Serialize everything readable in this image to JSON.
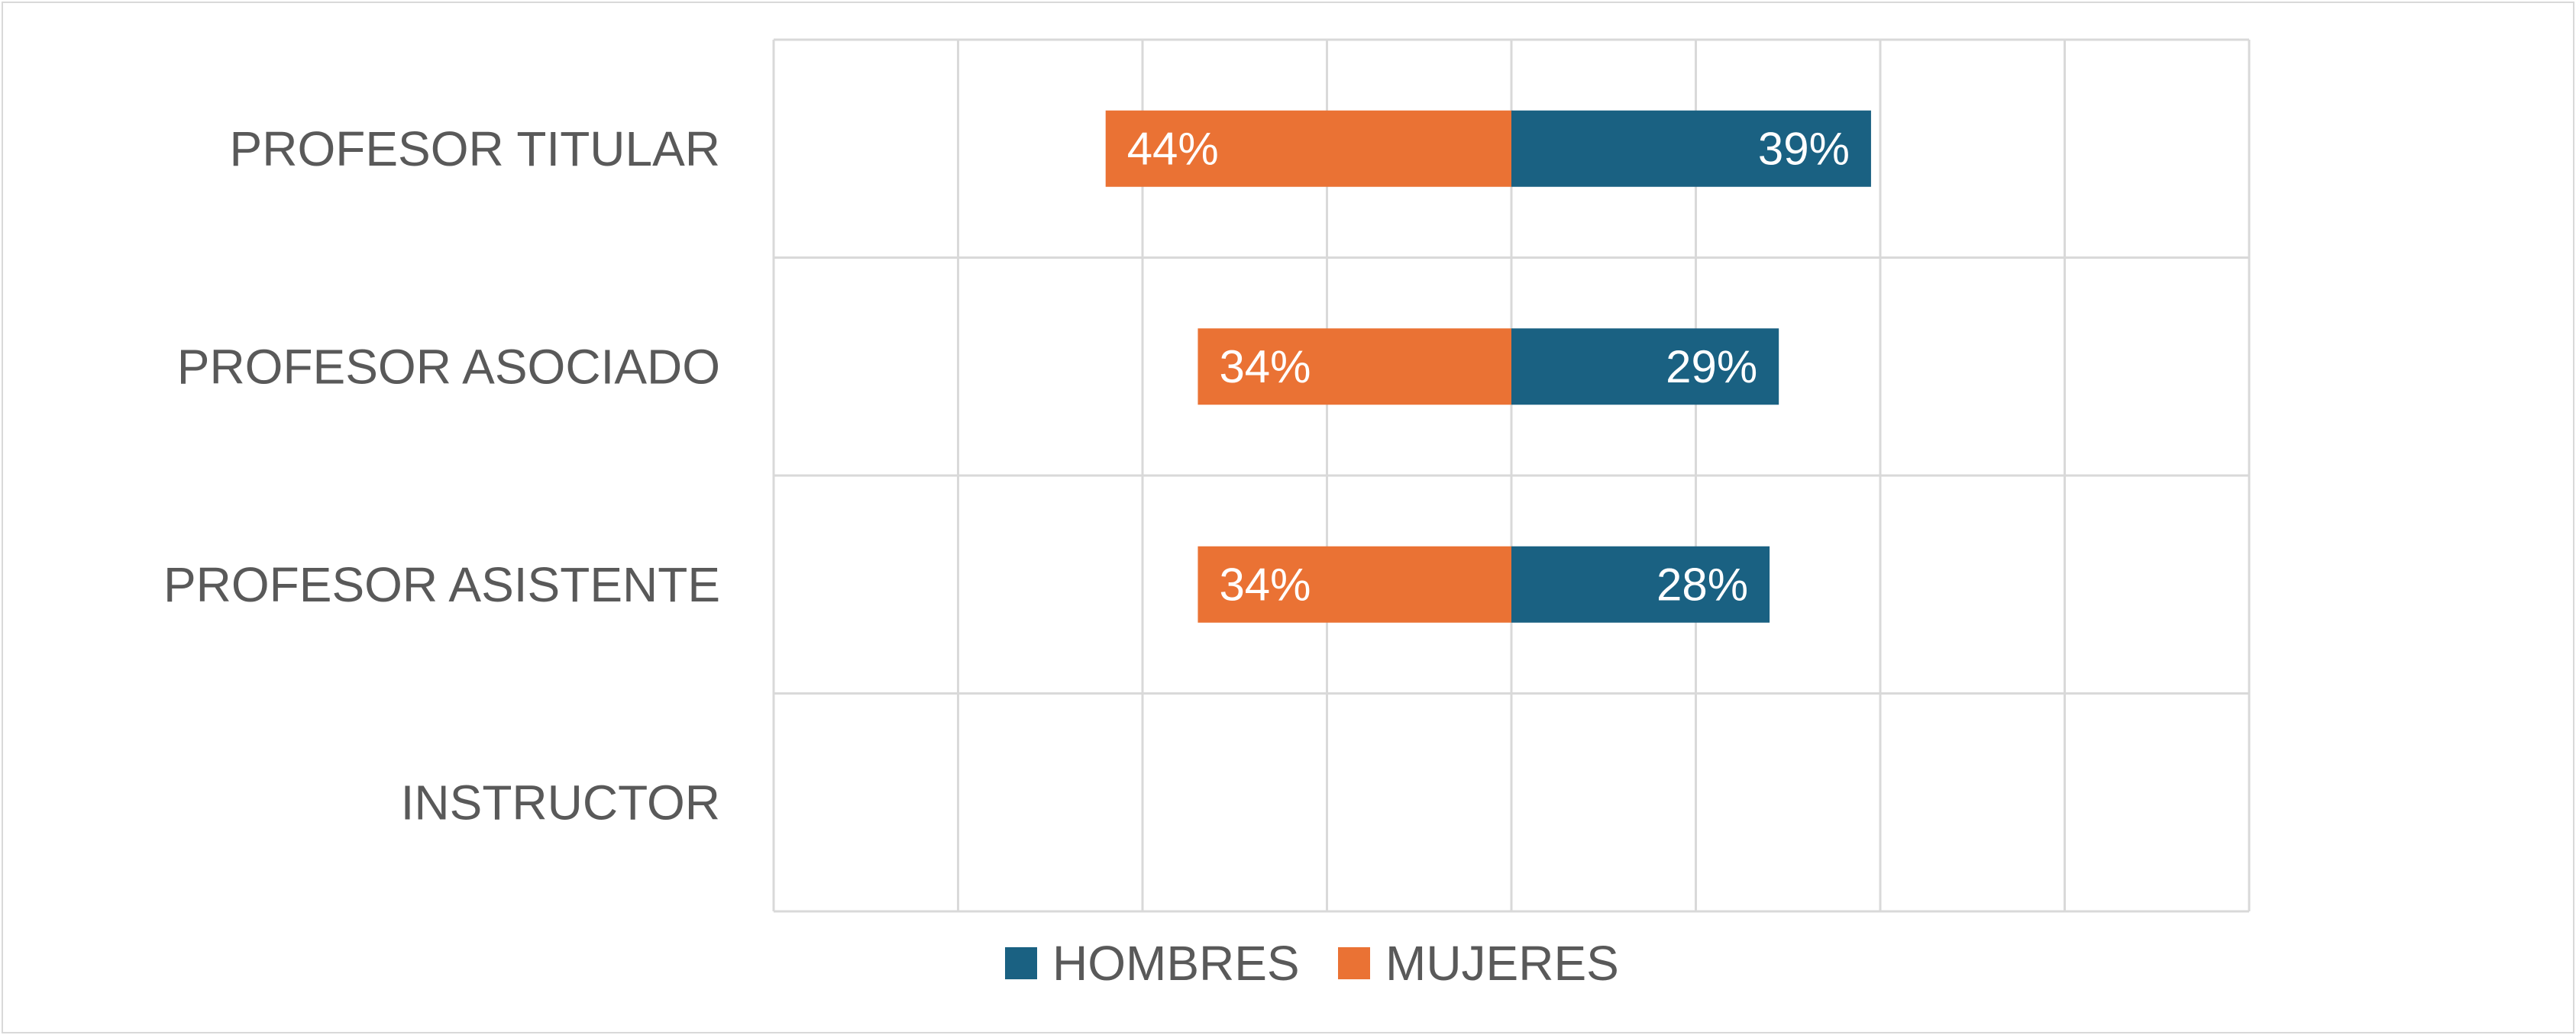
{
  "chart_data": {
    "type": "bar",
    "orientation": "horizontal",
    "layout": "diverging",
    "categories": [
      "PROFESOR TITULAR",
      "PROFESOR ASOCIADO",
      "PROFESOR ASISTENTE",
      "INSTRUCTOR"
    ],
    "series": [
      {
        "name": "HOMBRES",
        "side": "right",
        "color": "#1a6182",
        "values": [
          39,
          29,
          28,
          null
        ],
        "labels": [
          "39%",
          "29%",
          "28%",
          ""
        ]
      },
      {
        "name": "MUJERES",
        "side": "left",
        "color": "#ea7234",
        "values": [
          44,
          34,
          34,
          null
        ],
        "labels": [
          "44%",
          "34%",
          "34%",
          ""
        ]
      }
    ],
    "xlim": [
      -80,
      80
    ],
    "x_grid_step": 20,
    "y_grid": true,
    "x_tick_labels_shown": false,
    "legend_position": "bottom",
    "gridline_color": "#d9d9d9",
    "label_color": "#595959"
  }
}
